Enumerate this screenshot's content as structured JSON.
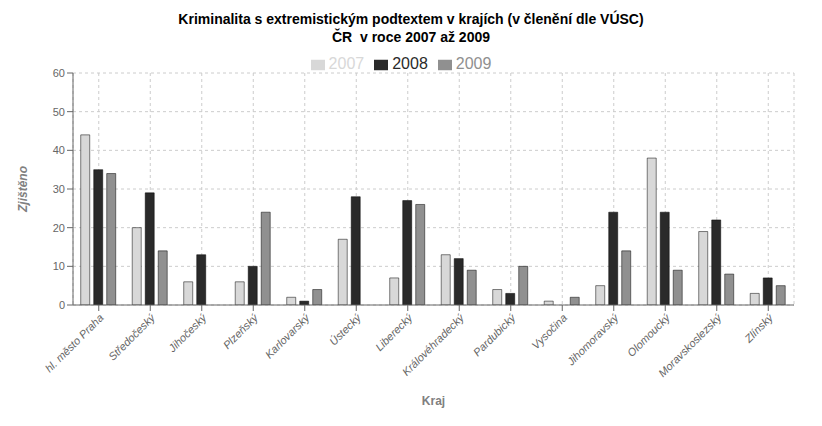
{
  "chart_data": {
    "type": "bar",
    "title": "Kriminalita s extremistickým podtextem v krajích (v členění dle VÚSC)\nČR  v roce 2007 až 2009",
    "xlabel": "Kraj",
    "ylabel": "Zjištěno",
    "categories": [
      "hl. město Praha",
      "Středočeský",
      "Jihočeský",
      "Plzeňský",
      "Karlovarský",
      "Ústecký",
      "Liberecký",
      "Královéhradecký",
      "Pardubický",
      "Vysočina",
      "Jihomoravský",
      "Olomoucký",
      "Moravskoslezský",
      "Zlínský"
    ],
    "series": [
      {
        "name": "2007",
        "color": "#d8d8d8",
        "values": [
          44,
          20,
          6,
          6,
          2,
          17,
          7,
          13,
          4,
          1,
          5,
          38,
          19,
          3
        ]
      },
      {
        "name": "2008",
        "color": "#2a2a2a",
        "values": [
          35,
          29,
          13,
          10,
          1,
          28,
          27,
          12,
          3,
          0,
          24,
          24,
          22,
          7
        ]
      },
      {
        "name": "2009",
        "color": "#909090",
        "values": [
          34,
          14,
          0,
          24,
          4,
          0,
          26,
          9,
          10,
          2,
          14,
          9,
          8,
          5
        ]
      }
    ],
    "ylim": [
      0,
      60
    ],
    "yticks": [
      0,
      10,
      20,
      30,
      40,
      50,
      60
    ],
    "grid": true,
    "legend": "top"
  }
}
